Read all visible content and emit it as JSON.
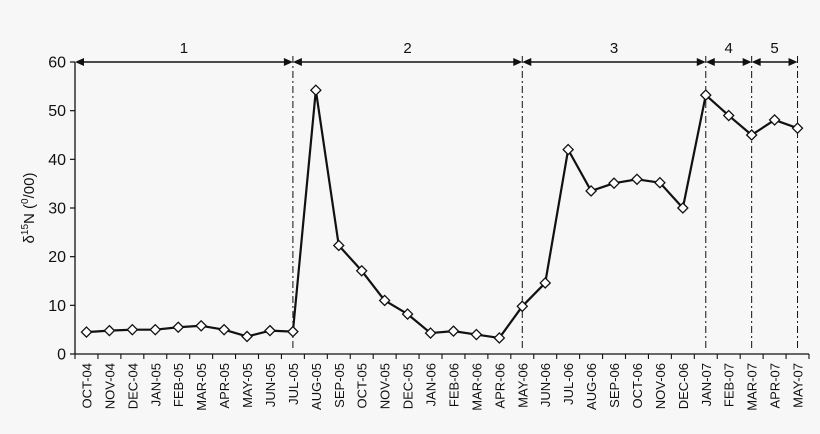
{
  "chart_data": {
    "type": "line",
    "title": "",
    "xlabel": "",
    "ylabel": "δ15N (0/00)",
    "ylabel_parts": {
      "delta": "δ",
      "sup": "15",
      "n": "N (",
      "unit_sup": "0",
      "unit_rest": "/00)"
    },
    "ylim": [
      0,
      60
    ],
    "yticks": [
      0,
      10,
      20,
      30,
      40,
      50,
      60
    ],
    "grid": false,
    "marker": "open-diamond",
    "line_color": "#111111",
    "categories": [
      "OCT-04",
      "NOV-04",
      "DEC-04",
      "JAN-05",
      "FEB-05",
      "MAR-05",
      "APR-05",
      "MAY-05",
      "JUN-05",
      "JUL-05",
      "AUG-05",
      "SEP-05",
      "OCT-05",
      "NOV-05",
      "DEC-05",
      "JAN-06",
      "FEB-06",
      "MAR-06",
      "APR-06",
      "MAY-06",
      "JUN-06",
      "JUL-06",
      "AUG-06",
      "SEP-06",
      "OCT-06",
      "NOV-06",
      "DEC-06",
      "JAN-07",
      "FEB-07",
      "MAR-07",
      "APR-07",
      "MAY-07"
    ],
    "values": [
      4.5,
      4.8,
      5.0,
      5.0,
      5.5,
      5.8,
      5.0,
      3.6,
      4.8,
      4.6,
      54.2,
      22.3,
      17.1,
      11.0,
      8.2,
      4.3,
      4.7,
      4.0,
      3.3,
      9.8,
      14.6,
      42.0,
      33.5,
      35.1,
      35.9,
      35.2,
      30.0,
      53.2,
      49.0,
      45.0,
      48.1,
      46.4
    ],
    "periods": [
      {
        "label": "1",
        "start": "OCT-04",
        "end": "JUL-05"
      },
      {
        "label": "2",
        "start": "JUL-05",
        "end": "MAY-06"
      },
      {
        "label": "3",
        "start": "MAY-06",
        "end": "JAN-07"
      },
      {
        "label": "4",
        "start": "JAN-07",
        "end": "MAR-07"
      },
      {
        "label": "5",
        "start": "MAR-07",
        "end": "MAY-07"
      }
    ]
  }
}
